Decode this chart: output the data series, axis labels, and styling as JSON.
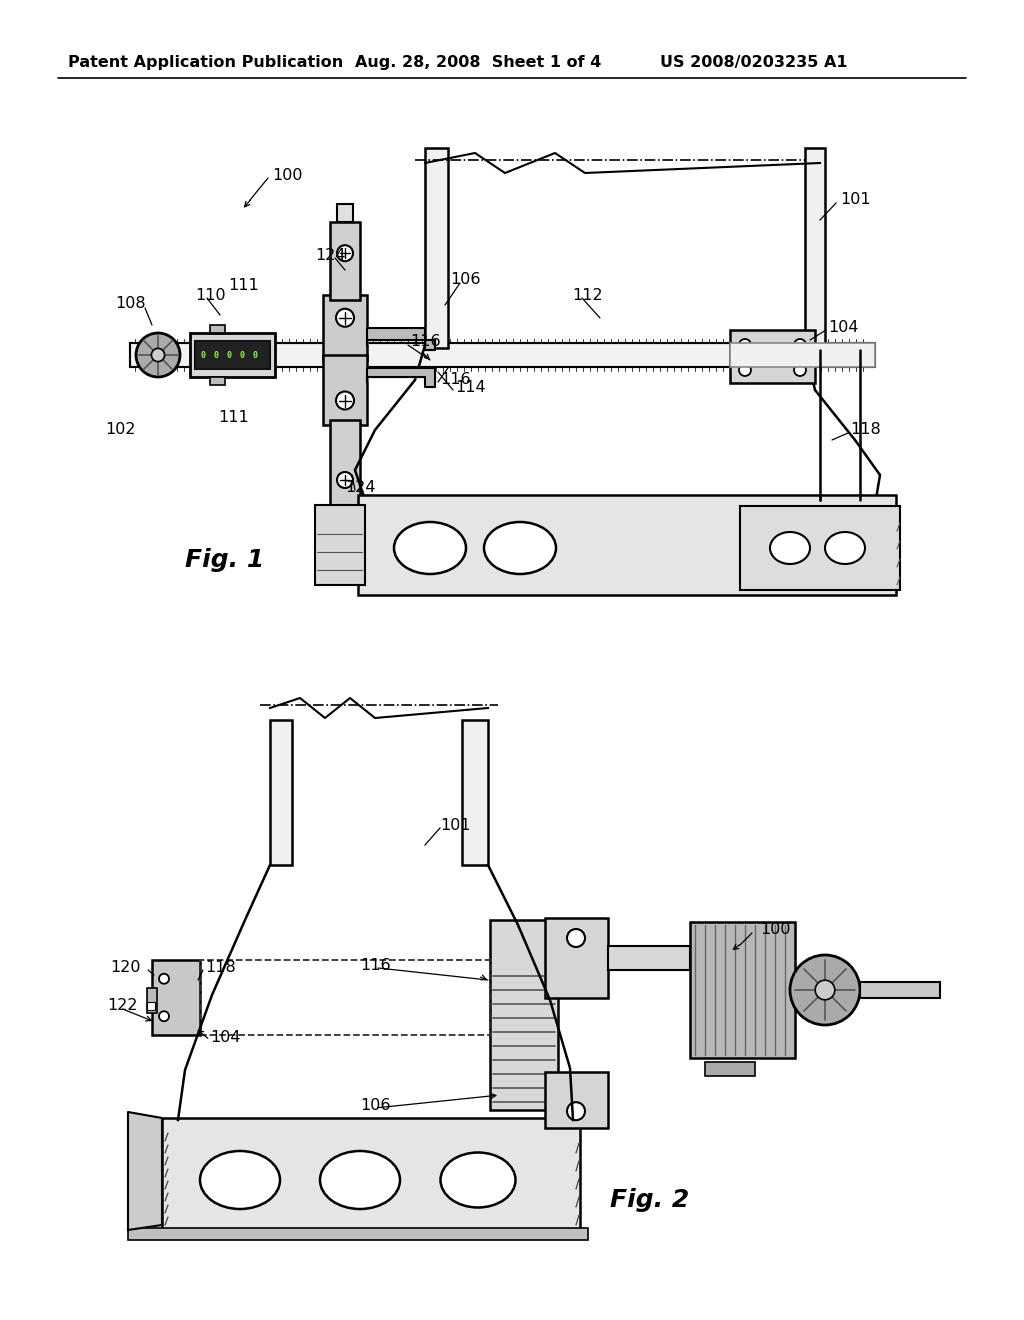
{
  "bg_color": "#ffffff",
  "line_color": "#000000",
  "header_left": "Patent Application Publication",
  "header_mid": "Aug. 28, 2008  Sheet 1 of 4",
  "header_right": "US 2008/0203235 A1",
  "fig1_label": "Fig. 1",
  "fig2_label": "Fig. 2",
  "gray_light": "#e8e8e8",
  "gray_mid": "#cccccc",
  "gray_dark": "#999999",
  "black": "#000000",
  "white": "#ffffff"
}
